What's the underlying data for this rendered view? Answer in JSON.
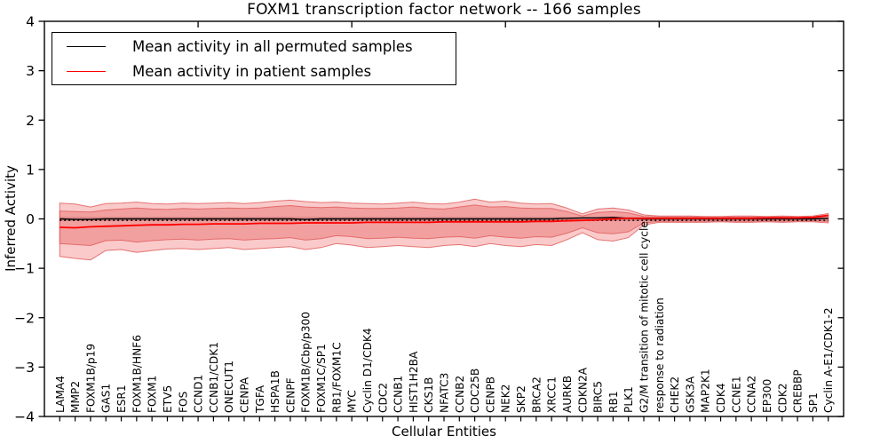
{
  "figure": {
    "title": "FOXM1 transcription factor network -- 166 samples",
    "xlabel": "Cellular Entities",
    "ylabel": "Inferred Activity"
  },
  "legend": {
    "items": [
      {
        "label": "Mean activity in all permuted samples",
        "color": "#000000"
      },
      {
        "label": "Mean activity in patient samples",
        "color": "#ff0000"
      }
    ]
  },
  "chart_data": {
    "type": "line",
    "title": "FOXM1 transcription factor network -- 166 samples",
    "xlabel": "Cellular Entities",
    "ylabel": "Inferred Activity",
    "ylim": [
      -4,
      4
    ],
    "yticks": [
      -4,
      -3,
      -2,
      -1,
      0,
      1,
      2,
      3,
      4
    ],
    "grid": false,
    "legend_position": "upper left",
    "top_tick_indices": [
      9,
      19,
      29,
      39,
      49
    ],
    "categories": [
      "LAMA4",
      "MMP2",
      "FOXM1B/p19",
      "GAS1",
      "ESR1",
      "FOXM1B/HNF6",
      "FOXM1",
      "ETV5",
      "FOS",
      "CCND1",
      "CCNB1/CDK1",
      "ONECUT1",
      "CENPA",
      "TGFA",
      "HSPA1B",
      "CENPF",
      "FOXM1B/Cbp/p300",
      "FOXM1C/SP1",
      "RB1/FOXM1C",
      "MYC",
      "Cyclin D1/CDK4",
      "CDC2",
      "CCNB1",
      "HIST1H2BA",
      "CKS1B",
      "NFATC3",
      "CCNB2",
      "CDC25B",
      "CENPB",
      "NEK2",
      "SKP2",
      "BRCA2",
      "XRCC1",
      "AURKB",
      "CDKN2A",
      "BIRC5",
      "RB1",
      "PLK1",
      "G2/M transition of mitotic cell cycle",
      "response to radiation",
      "CHEK2",
      "GSK3A",
      "MAP2K1",
      "CDK4",
      "CCNE1",
      "CCNA2",
      "EP300",
      "CDK2",
      "CREBBP",
      "SP1",
      "Cyclin A-E1/CDK1-2"
    ],
    "series": [
      {
        "name": "Mean activity in all permuted samples",
        "color": "#000000",
        "values": [
          0,
          -0.01,
          -0.01,
          0,
          0,
          0,
          0,
          0,
          0,
          0,
          0,
          0,
          0,
          0,
          0,
          0,
          -0.01,
          0,
          0,
          0,
          0,
          0,
          0,
          0,
          0,
          0,
          0,
          0,
          0,
          0,
          0,
          0,
          0,
          0.01,
          0.02,
          0.02,
          0.03,
          0.01,
          0,
          0,
          0,
          0,
          0,
          0,
          0,
          0,
          0,
          0,
          0,
          0,
          0.01
        ]
      },
      {
        "name": "Mean activity in patient samples",
        "color": "#ff0000",
        "values": [
          -0.17,
          -0.18,
          -0.16,
          -0.15,
          -0.14,
          -0.13,
          -0.12,
          -0.12,
          -0.11,
          -0.11,
          -0.1,
          -0.1,
          -0.1,
          -0.09,
          -0.09,
          -0.09,
          -0.08,
          -0.08,
          -0.08,
          -0.08,
          -0.07,
          -0.07,
          -0.07,
          -0.07,
          -0.07,
          -0.06,
          -0.06,
          -0.06,
          -0.06,
          -0.06,
          -0.06,
          -0.05,
          -0.05,
          -0.04,
          -0.03,
          -0.02,
          0.0,
          0.01,
          0.01,
          0.01,
          0.01,
          0.01,
          0.01,
          0.01,
          0.01,
          0.01,
          0.02,
          0.02,
          0.02,
          0.03,
          0.07
        ]
      }
    ],
    "permuted_median_dotted": -0.03,
    "bands": [
      {
        "name": "permuted-range",
        "fill": "#aaaaaa",
        "opacity": 0.5,
        "upper": [
          0.045,
          0.045,
          0.045,
          0.045,
          0.045,
          0.045,
          0.045,
          0.045,
          0.045,
          0.045,
          0.045,
          0.045,
          0.045,
          0.045,
          0.045,
          0.045,
          0.045,
          0.045,
          0.045,
          0.045,
          0.045,
          0.045,
          0.045,
          0.045,
          0.045,
          0.045,
          0.045,
          0.045,
          0.045,
          0.045,
          0.045,
          0.045,
          0.045,
          0.045,
          0.045,
          0.045,
          0.045,
          0.045,
          0.045,
          0.045,
          0.045,
          0.045,
          0.045,
          0.045,
          0.045,
          0.045,
          0.045,
          0.045,
          0.045,
          0.045,
          0.045
        ],
        "lower": [
          -0.045,
          -0.045,
          -0.045,
          -0.045,
          -0.045,
          -0.045,
          -0.045,
          -0.045,
          -0.045,
          -0.045,
          -0.045,
          -0.045,
          -0.045,
          -0.045,
          -0.045,
          -0.045,
          -0.045,
          -0.045,
          -0.045,
          -0.045,
          -0.045,
          -0.045,
          -0.045,
          -0.045,
          -0.045,
          -0.045,
          -0.045,
          -0.045,
          -0.045,
          -0.045,
          -0.045,
          -0.045,
          -0.045,
          -0.045,
          -0.045,
          -0.045,
          -0.045,
          -0.045,
          -0.045,
          -0.045,
          -0.045,
          -0.045,
          -0.045,
          -0.045,
          -0.045,
          -0.045,
          -0.045,
          -0.045,
          -0.045,
          -0.045,
          -0.045
        ]
      },
      {
        "name": "patient-range-outer",
        "fill": "#f05050",
        "opacity": 0.3,
        "edge": "#e05f5f",
        "upper": [
          0.32,
          0.3,
          0.24,
          0.31,
          0.32,
          0.34,
          0.31,
          0.3,
          0.32,
          0.31,
          0.32,
          0.33,
          0.31,
          0.33,
          0.36,
          0.38,
          0.35,
          0.33,
          0.34,
          0.32,
          0.31,
          0.3,
          0.32,
          0.34,
          0.31,
          0.3,
          0.34,
          0.4,
          0.34,
          0.36,
          0.32,
          0.3,
          0.31,
          0.22,
          0.1,
          0.2,
          0.22,
          0.18,
          0.08,
          0.06,
          0.06,
          0.06,
          0.05,
          0.05,
          0.06,
          0.06,
          0.05,
          0.06,
          0.05,
          0.06,
          0.11
        ],
        "lower": [
          -0.76,
          -0.8,
          -0.83,
          -0.64,
          -0.62,
          -0.68,
          -0.64,
          -0.61,
          -0.6,
          -0.62,
          -0.6,
          -0.58,
          -0.62,
          -0.6,
          -0.58,
          -0.56,
          -0.62,
          -0.58,
          -0.5,
          -0.53,
          -0.58,
          -0.56,
          -0.54,
          -0.56,
          -0.58,
          -0.54,
          -0.52,
          -0.56,
          -0.5,
          -0.54,
          -0.56,
          -0.52,
          -0.54,
          -0.42,
          -0.28,
          -0.42,
          -0.45,
          -0.38,
          -0.12,
          -0.07,
          -0.07,
          -0.07,
          -0.07,
          -0.06,
          -0.07,
          -0.07,
          -0.06,
          -0.07,
          -0.06,
          -0.06,
          -0.08
        ]
      },
      {
        "name": "patient-range-inner",
        "fill": "#e03c3c",
        "opacity": 0.3,
        "edge": "#e05f5f",
        "upper": [
          0.16,
          0.15,
          0.14,
          0.18,
          0.2,
          0.22,
          0.2,
          0.19,
          0.21,
          0.2,
          0.21,
          0.22,
          0.21,
          0.22,
          0.25,
          0.27,
          0.24,
          0.23,
          0.24,
          0.22,
          0.21,
          0.21,
          0.22,
          0.24,
          0.21,
          0.2,
          0.24,
          0.28,
          0.24,
          0.25,
          0.22,
          0.21,
          0.21,
          0.15,
          0.06,
          0.13,
          0.15,
          0.12,
          0.05,
          0.04,
          0.04,
          0.04,
          0.03,
          0.03,
          0.04,
          0.04,
          0.03,
          0.04,
          0.03,
          0.04,
          0.08
        ],
        "lower": [
          -0.5,
          -0.52,
          -0.54,
          -0.44,
          -0.43,
          -0.47,
          -0.44,
          -0.42,
          -0.41,
          -0.43,
          -0.41,
          -0.4,
          -0.43,
          -0.41,
          -0.4,
          -0.38,
          -0.43,
          -0.4,
          -0.34,
          -0.36,
          -0.4,
          -0.39,
          -0.37,
          -0.39,
          -0.4,
          -0.37,
          -0.36,
          -0.39,
          -0.34,
          -0.37,
          -0.39,
          -0.36,
          -0.37,
          -0.29,
          -0.18,
          -0.28,
          -0.3,
          -0.26,
          -0.08,
          -0.05,
          -0.05,
          -0.05,
          -0.05,
          -0.04,
          -0.05,
          -0.05,
          -0.04,
          -0.05,
          -0.04,
          -0.04,
          -0.05
        ]
      }
    ]
  }
}
